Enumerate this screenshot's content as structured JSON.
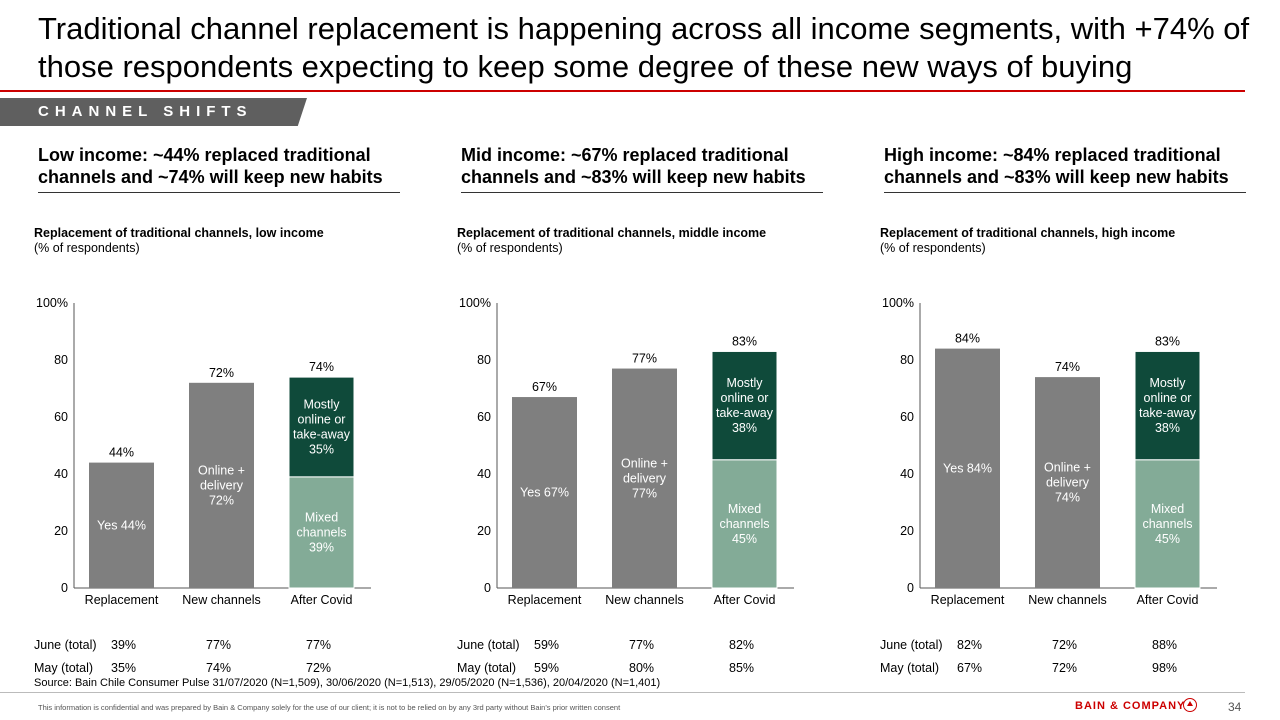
{
  "header": {
    "title": "Traditional channel replacement is happening across all income segments, with +74% of those respondents expecting to keep some degree of these new ways of buying",
    "section_tag": "CHANNEL SHIFTS"
  },
  "colors": {
    "accent_red": "#cc0000",
    "bar_gray": "#7f7f7f",
    "dark_green": "#0f4a3a",
    "light_green": "#83ab97"
  },
  "panels": [
    {
      "headline": "Low income: ~44% replaced traditional channels and ~74% will keep new habits",
      "chart_title": "Replacement of traditional channels, low income",
      "chart_subtitle": "(% of respondents)",
      "table": {
        "june_label": "June (total)",
        "june": [
          "39%",
          "77%",
          "77%"
        ],
        "may_label": "May (total)",
        "may": [
          "35%",
          "74%",
          "72%"
        ]
      }
    },
    {
      "headline": "Mid income: ~67% replaced traditional channels and ~83% will keep new habits",
      "chart_title": "Replacement of traditional channels, middle income",
      "chart_subtitle": "(% of respondents)",
      "table": {
        "june_label": "June (total)",
        "june": [
          "59%",
          "77%",
          "82%"
        ],
        "may_label": "May (total)",
        "may": [
          "59%",
          "80%",
          "85%"
        ]
      }
    },
    {
      "headline": "High income: ~84% replaced traditional channels and ~83% will keep new habits",
      "chart_title": "Replacement of traditional channels, high income",
      "chart_subtitle": "(% of respondents)",
      "table": {
        "june_label": "June (total)",
        "june": [
          "82%",
          "72%",
          "88%"
        ],
        "may_label": "May (total)",
        "may": [
          "67%",
          "72%",
          "98%"
        ]
      }
    }
  ],
  "chart_data": [
    {
      "type": "bar",
      "title": "Replacement of traditional channels, low income",
      "ylabel": "% of respondents",
      "ylim": [
        0,
        100
      ],
      "yticks": [
        "0",
        "20",
        "40",
        "60",
        "80",
        "100%"
      ],
      "categories": [
        "Replacement",
        "New channels",
        "After Covid"
      ],
      "totals": [
        "44%",
        "72%",
        "74%"
      ],
      "bars": [
        {
          "segments": [
            {
              "value": 44,
              "label": "Yes 44%",
              "color": "gray"
            }
          ]
        },
        {
          "segments": [
            {
              "value": 72,
              "label": "Online + delivery 72%",
              "color": "gray"
            }
          ]
        },
        {
          "segments": [
            {
              "value": 39,
              "label": "Mixed channels 39%",
              "color": "light"
            },
            {
              "value": 35,
              "label": "Mostly online or take-away 35%",
              "color": "dark"
            }
          ]
        }
      ]
    },
    {
      "type": "bar",
      "title": "Replacement of traditional channels, middle income",
      "ylabel": "% of respondents",
      "ylim": [
        0,
        100
      ],
      "yticks": [
        "0",
        "20",
        "40",
        "60",
        "80",
        "100%"
      ],
      "categories": [
        "Replacement",
        "New channels",
        "After Covid"
      ],
      "totals": [
        "67%",
        "77%",
        "83%"
      ],
      "bars": [
        {
          "segments": [
            {
              "value": 67,
              "label": "Yes 67%",
              "color": "gray"
            }
          ]
        },
        {
          "segments": [
            {
              "value": 77,
              "label": "Online + delivery 77%",
              "color": "gray"
            }
          ]
        },
        {
          "segments": [
            {
              "value": 45,
              "label": "Mixed channels 45%",
              "color": "light"
            },
            {
              "value": 38,
              "label": "Mostly online or take-away 38%",
              "color": "dark"
            }
          ]
        }
      ]
    },
    {
      "type": "bar",
      "title": "Replacement of traditional channels, high income",
      "ylabel": "% of respondents",
      "ylim": [
        0,
        100
      ],
      "yticks": [
        "0",
        "20",
        "40",
        "60",
        "80",
        "100%"
      ],
      "categories": [
        "Replacement",
        "New channels",
        "After Covid"
      ],
      "totals": [
        "84%",
        "74%",
        "83%"
      ],
      "bars": [
        {
          "segments": [
            {
              "value": 84,
              "label": "Yes 84%",
              "color": "gray"
            }
          ]
        },
        {
          "segments": [
            {
              "value": 74,
              "label": "Online + delivery 74%",
              "color": "gray"
            }
          ]
        },
        {
          "segments": [
            {
              "value": 45,
              "label": "Mixed channels 45%",
              "color": "light"
            },
            {
              "value": 38,
              "label": "Mostly online or take-away 38%",
              "color": "dark"
            }
          ]
        }
      ]
    }
  ],
  "footer": {
    "source": "Source: Bain Chile Consumer Pulse 31/07/2020 (N=1,509), 30/06/2020 (N=1,513), 29/05/2020 (N=1,536), 20/04/2020 (N=1,401)",
    "disclaimer": "This information is confidential and was prepared by Bain & Company solely for the use of our client; it is not to be relied on by any 3rd party without Bain's prior written consent",
    "brand": "BAIN & COMPANY",
    "page_number": "34"
  }
}
